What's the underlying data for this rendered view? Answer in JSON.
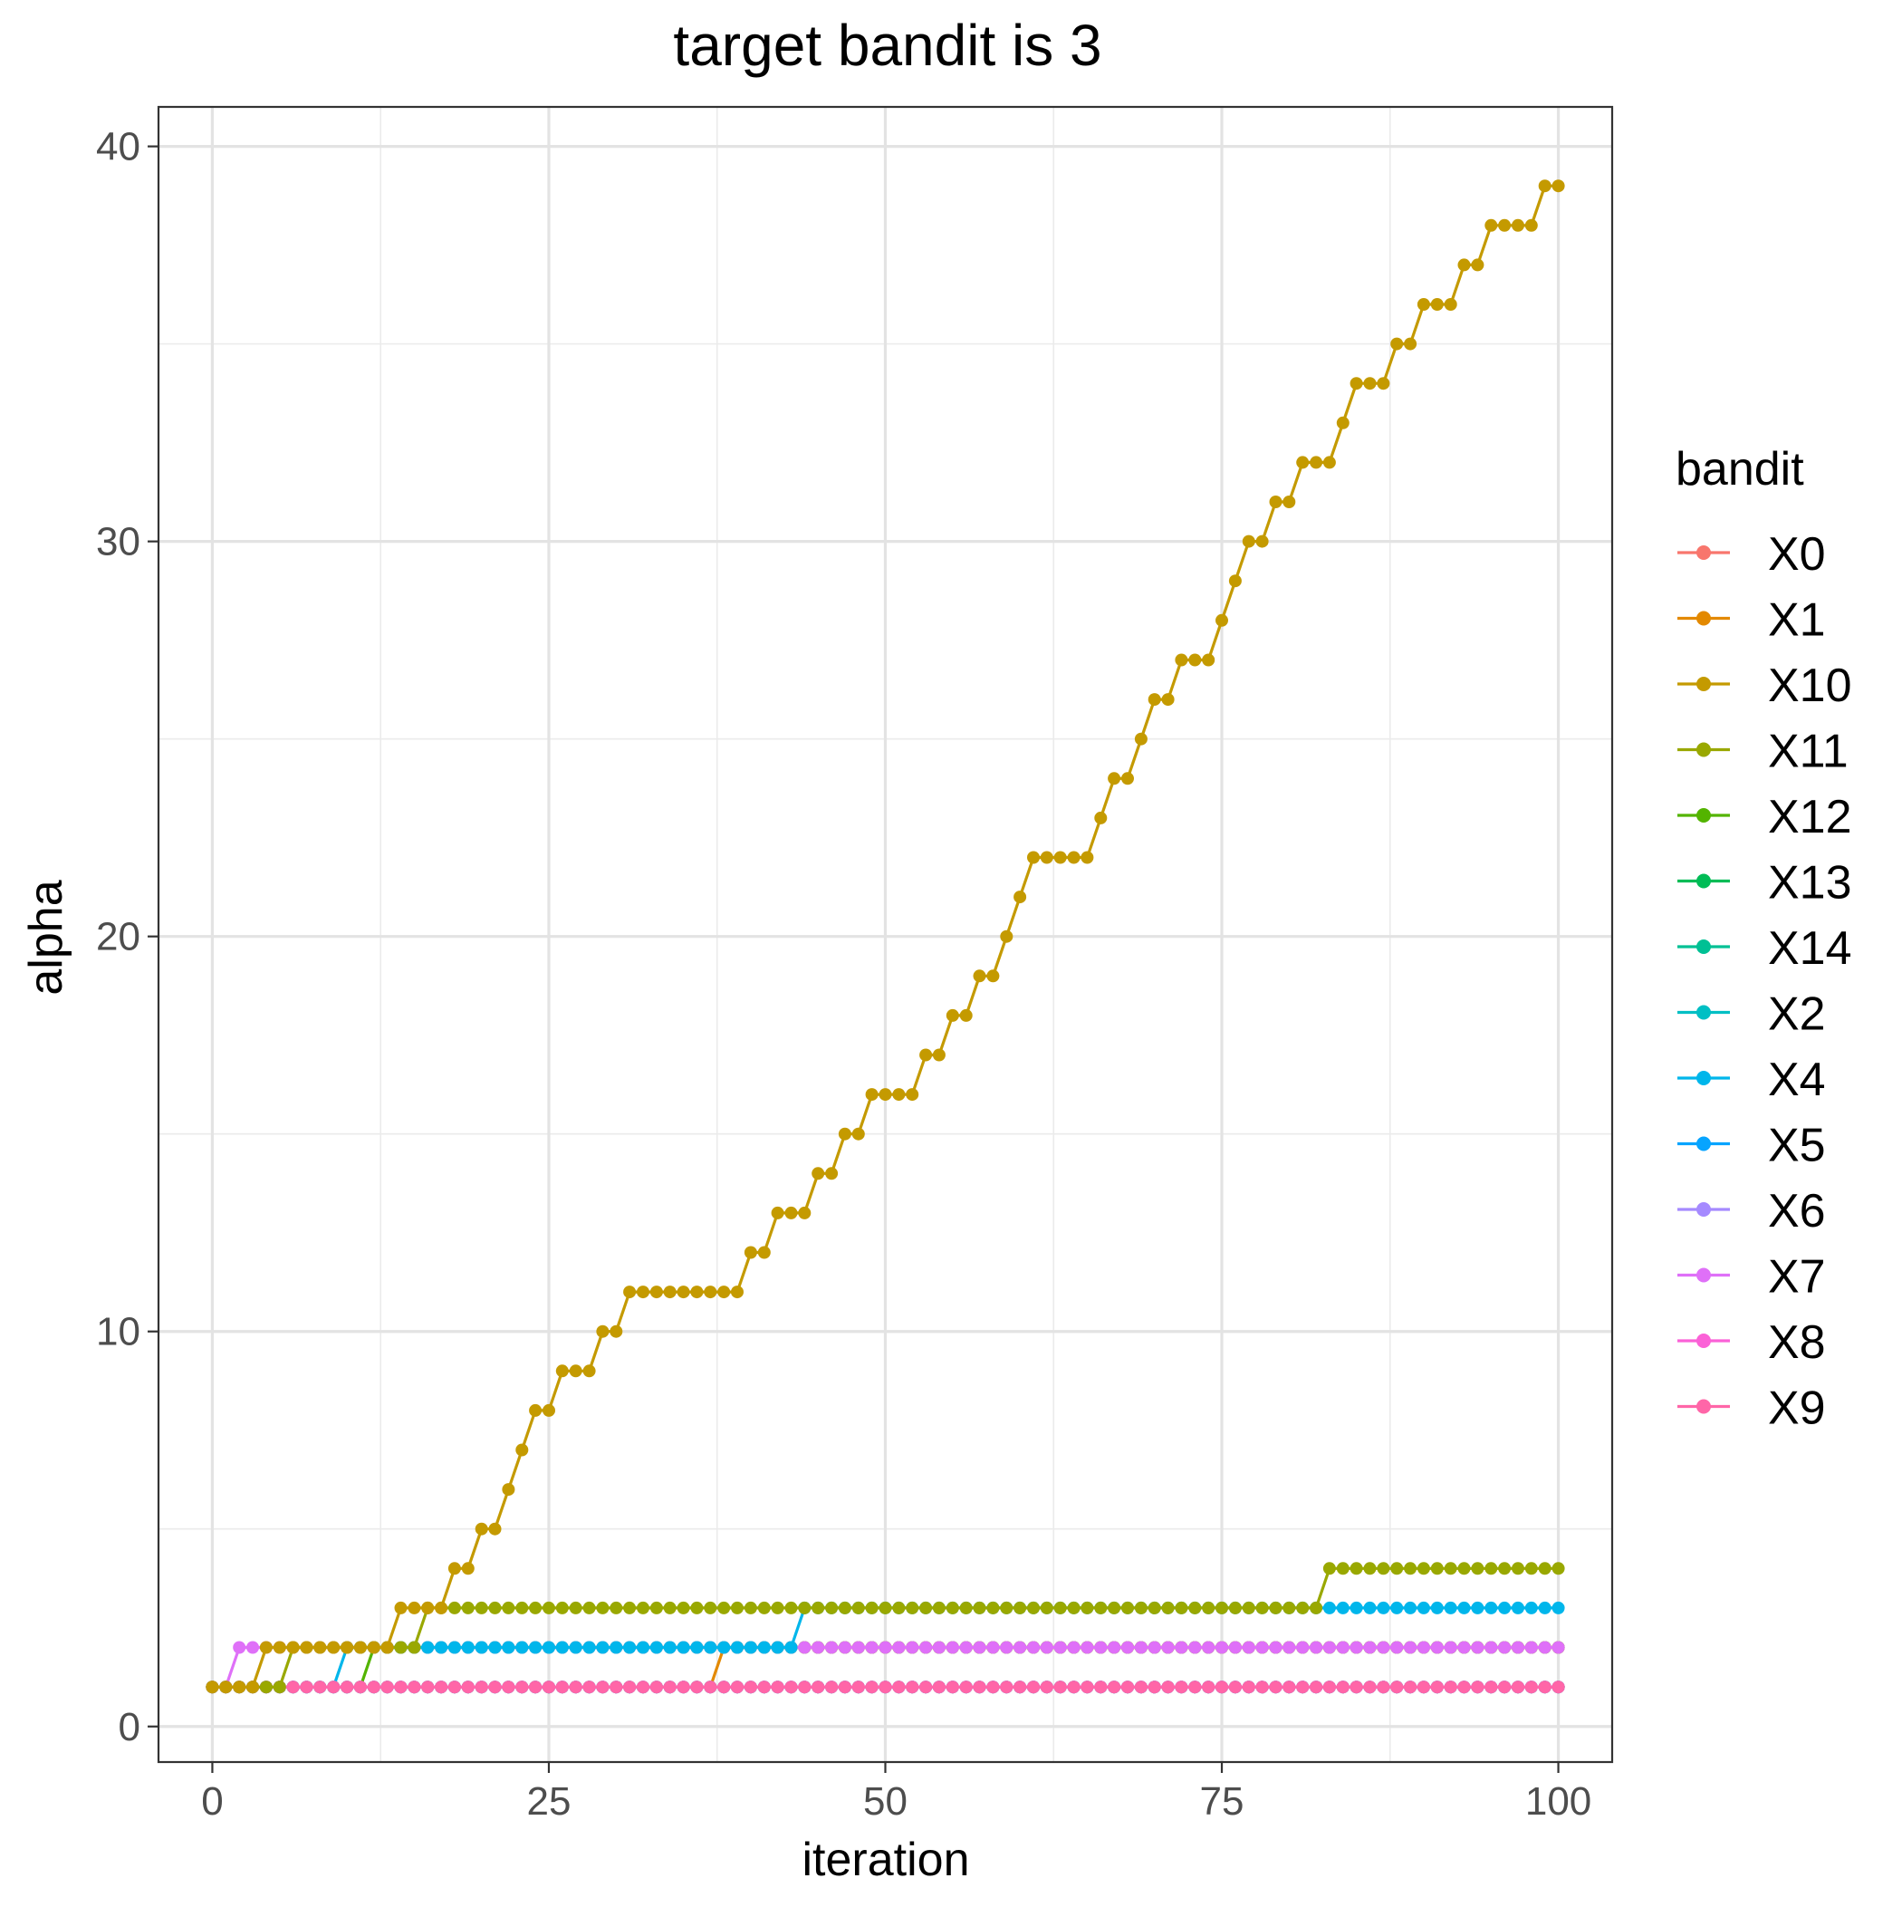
{
  "chart_data": {
    "type": "line",
    "title": "target bandit is 3",
    "xlabel": "iteration",
    "ylabel": "alpha",
    "xlim": [
      -4,
      104
    ],
    "ylim": [
      -0.9,
      41
    ],
    "x_ticks": [
      0,
      25,
      50,
      75,
      100
    ],
    "y_ticks": [
      0,
      10,
      20,
      30,
      40
    ],
    "grid": true,
    "markers": true,
    "legend": {
      "title": "bandit",
      "placement": "right"
    },
    "series": [
      {
        "name": "X0",
        "color": "#F8766D",
        "steps": [
          [
            0,
            1
          ]
        ]
      },
      {
        "name": "X1",
        "color": "#E38900",
        "steps": [
          [
            0,
            1
          ],
          [
            38,
            2
          ]
        ]
      },
      {
        "name": "X10",
        "color": "#C49A00",
        "steps": [
          [
            0,
            1
          ],
          [
            4,
            2
          ],
          [
            14,
            3
          ],
          [
            18,
            4
          ],
          [
            20,
            5
          ],
          [
            22,
            6
          ],
          [
            23,
            7
          ],
          [
            24,
            8
          ],
          [
            26,
            9
          ],
          [
            29,
            10
          ],
          [
            31,
            11
          ],
          [
            40,
            12
          ],
          [
            42,
            13
          ],
          [
            45,
            14
          ],
          [
            47,
            15
          ],
          [
            49,
            16
          ],
          [
            53,
            17
          ],
          [
            55,
            18
          ],
          [
            57,
            19
          ],
          [
            59,
            20
          ],
          [
            60,
            21
          ],
          [
            61,
            22
          ],
          [
            66,
            23
          ],
          [
            67,
            24
          ],
          [
            69,
            25
          ],
          [
            70,
            26
          ],
          [
            72,
            27
          ],
          [
            75,
            28
          ],
          [
            76,
            29
          ],
          [
            77,
            30
          ],
          [
            79,
            31
          ],
          [
            81,
            32
          ],
          [
            84,
            33
          ],
          [
            85,
            34
          ],
          [
            88,
            35
          ],
          [
            90,
            36
          ],
          [
            93,
            37
          ],
          [
            95,
            38
          ],
          [
            99,
            39
          ]
        ]
      },
      {
        "name": "X11",
        "color": "#99A800",
        "steps": [
          [
            0,
            1
          ],
          [
            6,
            2
          ],
          [
            16,
            3
          ],
          [
            83,
            4
          ]
        ]
      },
      {
        "name": "X12",
        "color": "#53B400",
        "steps": [
          [
            0,
            1
          ],
          [
            12,
            2
          ]
        ]
      },
      {
        "name": "X13",
        "color": "#00BC56",
        "steps": [
          [
            0,
            1
          ]
        ]
      },
      {
        "name": "X14",
        "color": "#00C094",
        "steps": [
          [
            0,
            1
          ]
        ]
      },
      {
        "name": "X2",
        "color": "#00BFC4",
        "steps": [
          [
            0,
            1
          ]
        ]
      },
      {
        "name": "X4",
        "color": "#00B6EB",
        "steps": [
          [
            0,
            1
          ],
          [
            10,
            2
          ],
          [
            44,
            3
          ]
        ]
      },
      {
        "name": "X5",
        "color": "#06A4FF",
        "steps": [
          [
            0,
            1
          ]
        ]
      },
      {
        "name": "X6",
        "color": "#A58AFF",
        "steps": [
          [
            0,
            1
          ]
        ]
      },
      {
        "name": "X7",
        "color": "#DF70F8",
        "steps": [
          [
            0,
            1
          ],
          [
            2,
            2
          ]
        ]
      },
      {
        "name": "X8",
        "color": "#FB61D7",
        "steps": [
          [
            0,
            1
          ]
        ]
      },
      {
        "name": "X9",
        "color": "#FF66A8",
        "steps": [
          [
            0,
            1
          ]
        ]
      }
    ],
    "draw_order": [
      "X0",
      "X1",
      "X12",
      "X7",
      "X13",
      "X14",
      "X2",
      "X4",
      "X5",
      "X6",
      "X8",
      "X9",
      "X11",
      "X10"
    ],
    "x_range": [
      0,
      100
    ]
  }
}
